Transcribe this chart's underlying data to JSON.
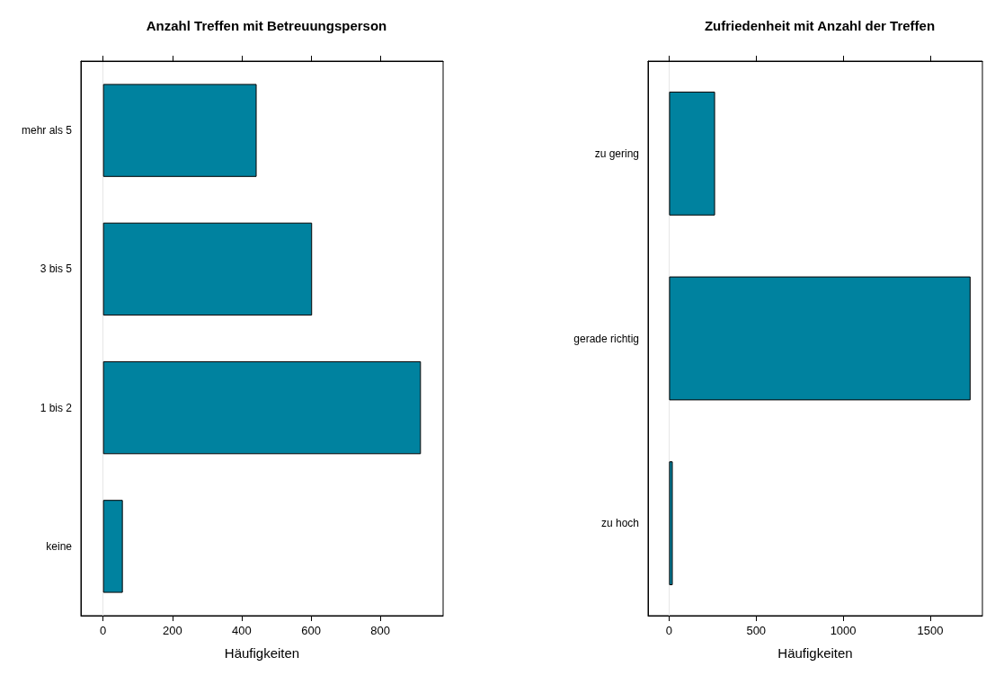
{
  "chart_data": [
    {
      "type": "bar",
      "orientation": "horizontal",
      "title": "Anzahl Treffen mit Betreuungsperson",
      "xlabel": "Häufigkeiten",
      "categories": [
        "mehr als 5",
        "3 bis 5",
        "1 bis 2",
        "keine"
      ],
      "values": [
        443,
        603,
        917,
        57
      ],
      "color": "#00829f",
      "xlim": [
        -64,
        981
      ],
      "xticks": [
        0,
        200,
        400,
        600,
        800
      ],
      "grid": false,
      "ref_lines": [
        {
          "axis": "x",
          "value": 0,
          "color": "#e6e6e6"
        }
      ]
    },
    {
      "type": "bar",
      "orientation": "horizontal",
      "title": "Zufriedenheit mit Anzahl der Treffen",
      "xlabel": "Häufigkeiten",
      "categories": [
        "zu gering",
        "gerade richtig",
        "zu hoch"
      ],
      "values": [
        264,
        1732,
        21
      ],
      "color": "#00829f",
      "xlim": [
        -121,
        1800
      ],
      "xticks": [
        0,
        500,
        1000,
        1500
      ],
      "grid": false,
      "ref_lines": [
        {
          "axis": "x",
          "value": 0,
          "color": "#e6e6e6"
        }
      ]
    }
  ]
}
